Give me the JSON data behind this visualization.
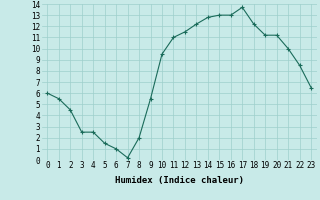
{
  "x": [
    0,
    1,
    2,
    3,
    4,
    5,
    6,
    7,
    8,
    9,
    10,
    11,
    12,
    13,
    14,
    15,
    16,
    17,
    18,
    19,
    20,
    21,
    22,
    23
  ],
  "y": [
    6.0,
    5.5,
    4.5,
    2.5,
    2.5,
    1.5,
    1.0,
    0.2,
    2.0,
    5.5,
    9.5,
    11.0,
    11.5,
    12.2,
    12.8,
    13.0,
    13.0,
    13.7,
    12.2,
    11.2,
    11.2,
    10.0,
    8.5,
    6.5
  ],
  "xlabel": "Humidex (Indice chaleur)",
  "xlim": [
    -0.5,
    23.5
  ],
  "ylim": [
    0,
    14
  ],
  "yticks": [
    0,
    1,
    2,
    3,
    4,
    5,
    6,
    7,
    8,
    9,
    10,
    11,
    12,
    13,
    14
  ],
  "xticks": [
    0,
    1,
    2,
    3,
    4,
    5,
    6,
    7,
    8,
    9,
    10,
    11,
    12,
    13,
    14,
    15,
    16,
    17,
    18,
    19,
    20,
    21,
    22,
    23
  ],
  "line_color": "#1a6b5a",
  "marker_color": "#1a6b5a",
  "bg_color": "#c8eae8",
  "grid_color": "#9ecfcc",
  "xlabel_fontsize": 6.5,
  "tick_fontsize": 5.5
}
